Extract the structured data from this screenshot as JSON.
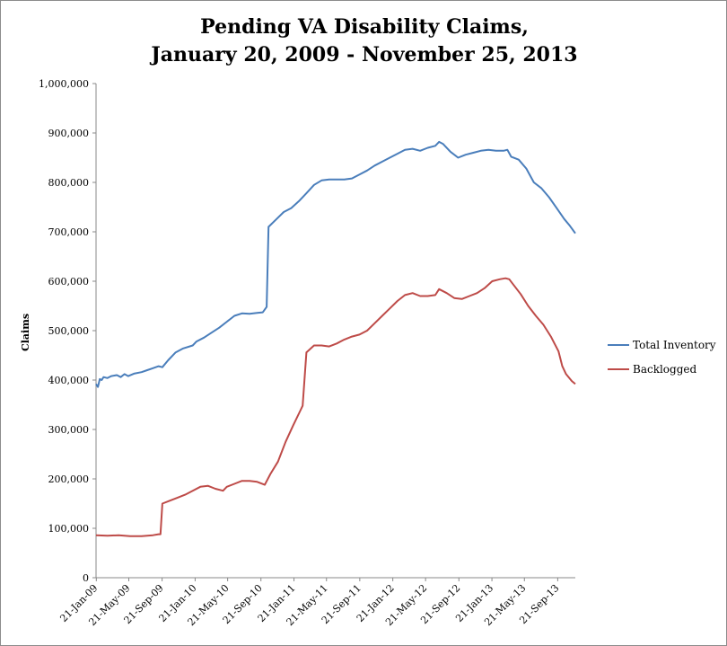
{
  "chart_data": {
    "type": "line",
    "title": [
      "Pending VA Disability  Claims,",
      "January 20, 2009 - November 25, 2013"
    ],
    "xlabel": "",
    "ylabel": "Claims",
    "ylim": [
      0,
      1000000
    ],
    "yticks": [
      "0",
      "100,000",
      "200,000",
      "300,000",
      "400,000",
      "500,000",
      "600,000",
      "700,000",
      "800,000",
      "900,000",
      "1,000,000"
    ],
    "x_tick_labels": [
      "21-Jan-09",
      "21-May-09",
      "21-Sep-09",
      "21-Jan-10",
      "21-May-10",
      "21-Sep-10",
      "21-Jan-11",
      "21-May-11",
      "21-Sep-11",
      "21-Jan-12",
      "21-May-12",
      "21-Sep-12",
      "21-Jan-13",
      "21-May-13",
      "21-Sep-13"
    ],
    "x_tick_dates": [
      "2009-01-21",
      "2009-05-21",
      "2009-09-21",
      "2010-01-21",
      "2010-05-21",
      "2010-09-21",
      "2011-01-21",
      "2011-05-21",
      "2011-09-21",
      "2012-01-21",
      "2012-05-21",
      "2012-09-21",
      "2013-01-21",
      "2013-05-21",
      "2013-09-21"
    ],
    "x_range": [
      "2009-01-20",
      "2013-11-25"
    ],
    "legend_position": "right",
    "grid": false,
    "series": [
      {
        "name": "Total Inventory",
        "color": "#4a7ebb",
        "points": [
          [
            "2009-01-20",
            392000
          ],
          [
            "2009-01-27",
            386000
          ],
          [
            "2009-02-03",
            402000
          ],
          [
            "2009-02-10",
            400000
          ],
          [
            "2009-02-17",
            406000
          ],
          [
            "2009-03-03",
            404000
          ],
          [
            "2009-03-17",
            408000
          ],
          [
            "2009-04-07",
            410000
          ],
          [
            "2009-04-21",
            406000
          ],
          [
            "2009-05-05",
            412000
          ],
          [
            "2009-05-19",
            408000
          ],
          [
            "2009-06-09",
            413000
          ],
          [
            "2009-07-07",
            416000
          ],
          [
            "2009-07-28",
            420000
          ],
          [
            "2009-08-18",
            424000
          ],
          [
            "2009-09-08",
            428000
          ],
          [
            "2009-09-22",
            426000
          ],
          [
            "2009-10-13",
            440000
          ],
          [
            "2009-11-10",
            456000
          ],
          [
            "2009-12-08",
            464000
          ],
          [
            "2010-01-12",
            470000
          ],
          [
            "2010-01-26",
            478000
          ],
          [
            "2010-02-23",
            486000
          ],
          [
            "2010-03-23",
            496000
          ],
          [
            "2010-04-20",
            506000
          ],
          [
            "2010-05-18",
            518000
          ],
          [
            "2010-06-15",
            530000
          ],
          [
            "2010-07-13",
            535000
          ],
          [
            "2010-08-10",
            534000
          ],
          [
            "2010-09-07",
            536000
          ],
          [
            "2010-09-28",
            537000
          ],
          [
            "2010-10-12",
            548000
          ],
          [
            "2010-10-19",
            710000
          ],
          [
            "2010-11-16",
            725000
          ],
          [
            "2010-12-14",
            740000
          ],
          [
            "2011-01-11",
            748000
          ],
          [
            "2011-02-08",
            762000
          ],
          [
            "2011-03-08",
            778000
          ],
          [
            "2011-04-05",
            795000
          ],
          [
            "2011-05-03",
            804000
          ],
          [
            "2011-05-31",
            806000
          ],
          [
            "2011-06-28",
            806000
          ],
          [
            "2011-07-26",
            806000
          ],
          [
            "2011-08-23",
            808000
          ],
          [
            "2011-09-20",
            816000
          ],
          [
            "2011-10-18",
            824000
          ],
          [
            "2011-11-15",
            834000
          ],
          [
            "2011-12-13",
            842000
          ],
          [
            "2012-01-10",
            850000
          ],
          [
            "2012-02-07",
            858000
          ],
          [
            "2012-03-06",
            866000
          ],
          [
            "2012-04-03",
            868000
          ],
          [
            "2012-05-01",
            864000
          ],
          [
            "2012-05-29",
            870000
          ],
          [
            "2012-06-26",
            874000
          ],
          [
            "2012-07-10",
            882000
          ],
          [
            "2012-07-24",
            878000
          ],
          [
            "2012-08-21",
            862000
          ],
          [
            "2012-09-18",
            850000
          ],
          [
            "2012-10-16",
            856000
          ],
          [
            "2012-11-13",
            860000
          ],
          [
            "2012-12-11",
            864000
          ],
          [
            "2013-01-08",
            866000
          ],
          [
            "2013-02-05",
            864000
          ],
          [
            "2013-03-05",
            864000
          ],
          [
            "2013-03-19",
            866000
          ],
          [
            "2013-04-02",
            852000
          ],
          [
            "2013-04-30",
            846000
          ],
          [
            "2013-05-28",
            828000
          ],
          [
            "2013-06-25",
            800000
          ],
          [
            "2013-07-23",
            788000
          ],
          [
            "2013-08-20",
            770000
          ],
          [
            "2013-09-17",
            748000
          ],
          [
            "2013-10-15",
            726000
          ],
          [
            "2013-11-05",
            712000
          ],
          [
            "2013-11-25",
            697000
          ]
        ]
      },
      {
        "name": "Backlogged",
        "color": "#be4b48",
        "points": [
          [
            "2009-01-20",
            86000
          ],
          [
            "2009-03-03",
            85000
          ],
          [
            "2009-04-14",
            86000
          ],
          [
            "2009-05-26",
            84000
          ],
          [
            "2009-07-07",
            84000
          ],
          [
            "2009-08-18",
            86000
          ],
          [
            "2009-09-08",
            88000
          ],
          [
            "2009-09-15",
            88000
          ],
          [
            "2009-09-22",
            150000
          ],
          [
            "2009-10-20",
            156000
          ],
          [
            "2009-11-17",
            162000
          ],
          [
            "2009-12-15",
            168000
          ],
          [
            "2010-01-12",
            176000
          ],
          [
            "2010-02-09",
            184000
          ],
          [
            "2010-03-09",
            186000
          ],
          [
            "2010-04-06",
            180000
          ],
          [
            "2010-05-04",
            176000
          ],
          [
            "2010-05-18",
            184000
          ],
          [
            "2010-06-15",
            190000
          ],
          [
            "2010-07-13",
            196000
          ],
          [
            "2010-08-10",
            196000
          ],
          [
            "2010-09-07",
            194000
          ],
          [
            "2010-10-05",
            188000
          ],
          [
            "2010-10-26",
            210000
          ],
          [
            "2010-11-23",
            235000
          ],
          [
            "2010-12-21",
            275000
          ],
          [
            "2011-01-18",
            308000
          ],
          [
            "2011-02-15",
            340000
          ],
          [
            "2011-02-22",
            348000
          ],
          [
            "2011-03-08",
            456000
          ],
          [
            "2011-04-05",
            470000
          ],
          [
            "2011-05-03",
            470000
          ],
          [
            "2011-05-31",
            468000
          ],
          [
            "2011-06-28",
            474000
          ],
          [
            "2011-07-26",
            482000
          ],
          [
            "2011-08-23",
            488000
          ],
          [
            "2011-09-20",
            492000
          ],
          [
            "2011-10-18",
            500000
          ],
          [
            "2011-11-15",
            515000
          ],
          [
            "2011-12-13",
            530000
          ],
          [
            "2012-01-10",
            545000
          ],
          [
            "2012-02-07",
            560000
          ],
          [
            "2012-03-06",
            572000
          ],
          [
            "2012-04-03",
            576000
          ],
          [
            "2012-05-01",
            570000
          ],
          [
            "2012-05-29",
            570000
          ],
          [
            "2012-06-26",
            572000
          ],
          [
            "2012-07-10",
            584000
          ],
          [
            "2012-08-07",
            576000
          ],
          [
            "2012-09-04",
            566000
          ],
          [
            "2012-10-02",
            564000
          ],
          [
            "2012-10-30",
            570000
          ],
          [
            "2012-11-27",
            576000
          ],
          [
            "2012-12-25",
            586000
          ],
          [
            "2013-01-22",
            600000
          ],
          [
            "2013-02-19",
            604000
          ],
          [
            "2013-03-12",
            606000
          ],
          [
            "2013-03-26",
            604000
          ],
          [
            "2013-04-09",
            594000
          ],
          [
            "2013-05-07",
            574000
          ],
          [
            "2013-06-04",
            550000
          ],
          [
            "2013-07-02",
            530000
          ],
          [
            "2013-07-30",
            512000
          ],
          [
            "2013-08-27",
            488000
          ],
          [
            "2013-09-24",
            458000
          ],
          [
            "2013-10-08",
            428000
          ],
          [
            "2013-10-22",
            412000
          ],
          [
            "2013-11-12",
            398000
          ],
          [
            "2013-11-25",
            392000
          ]
        ]
      }
    ]
  }
}
